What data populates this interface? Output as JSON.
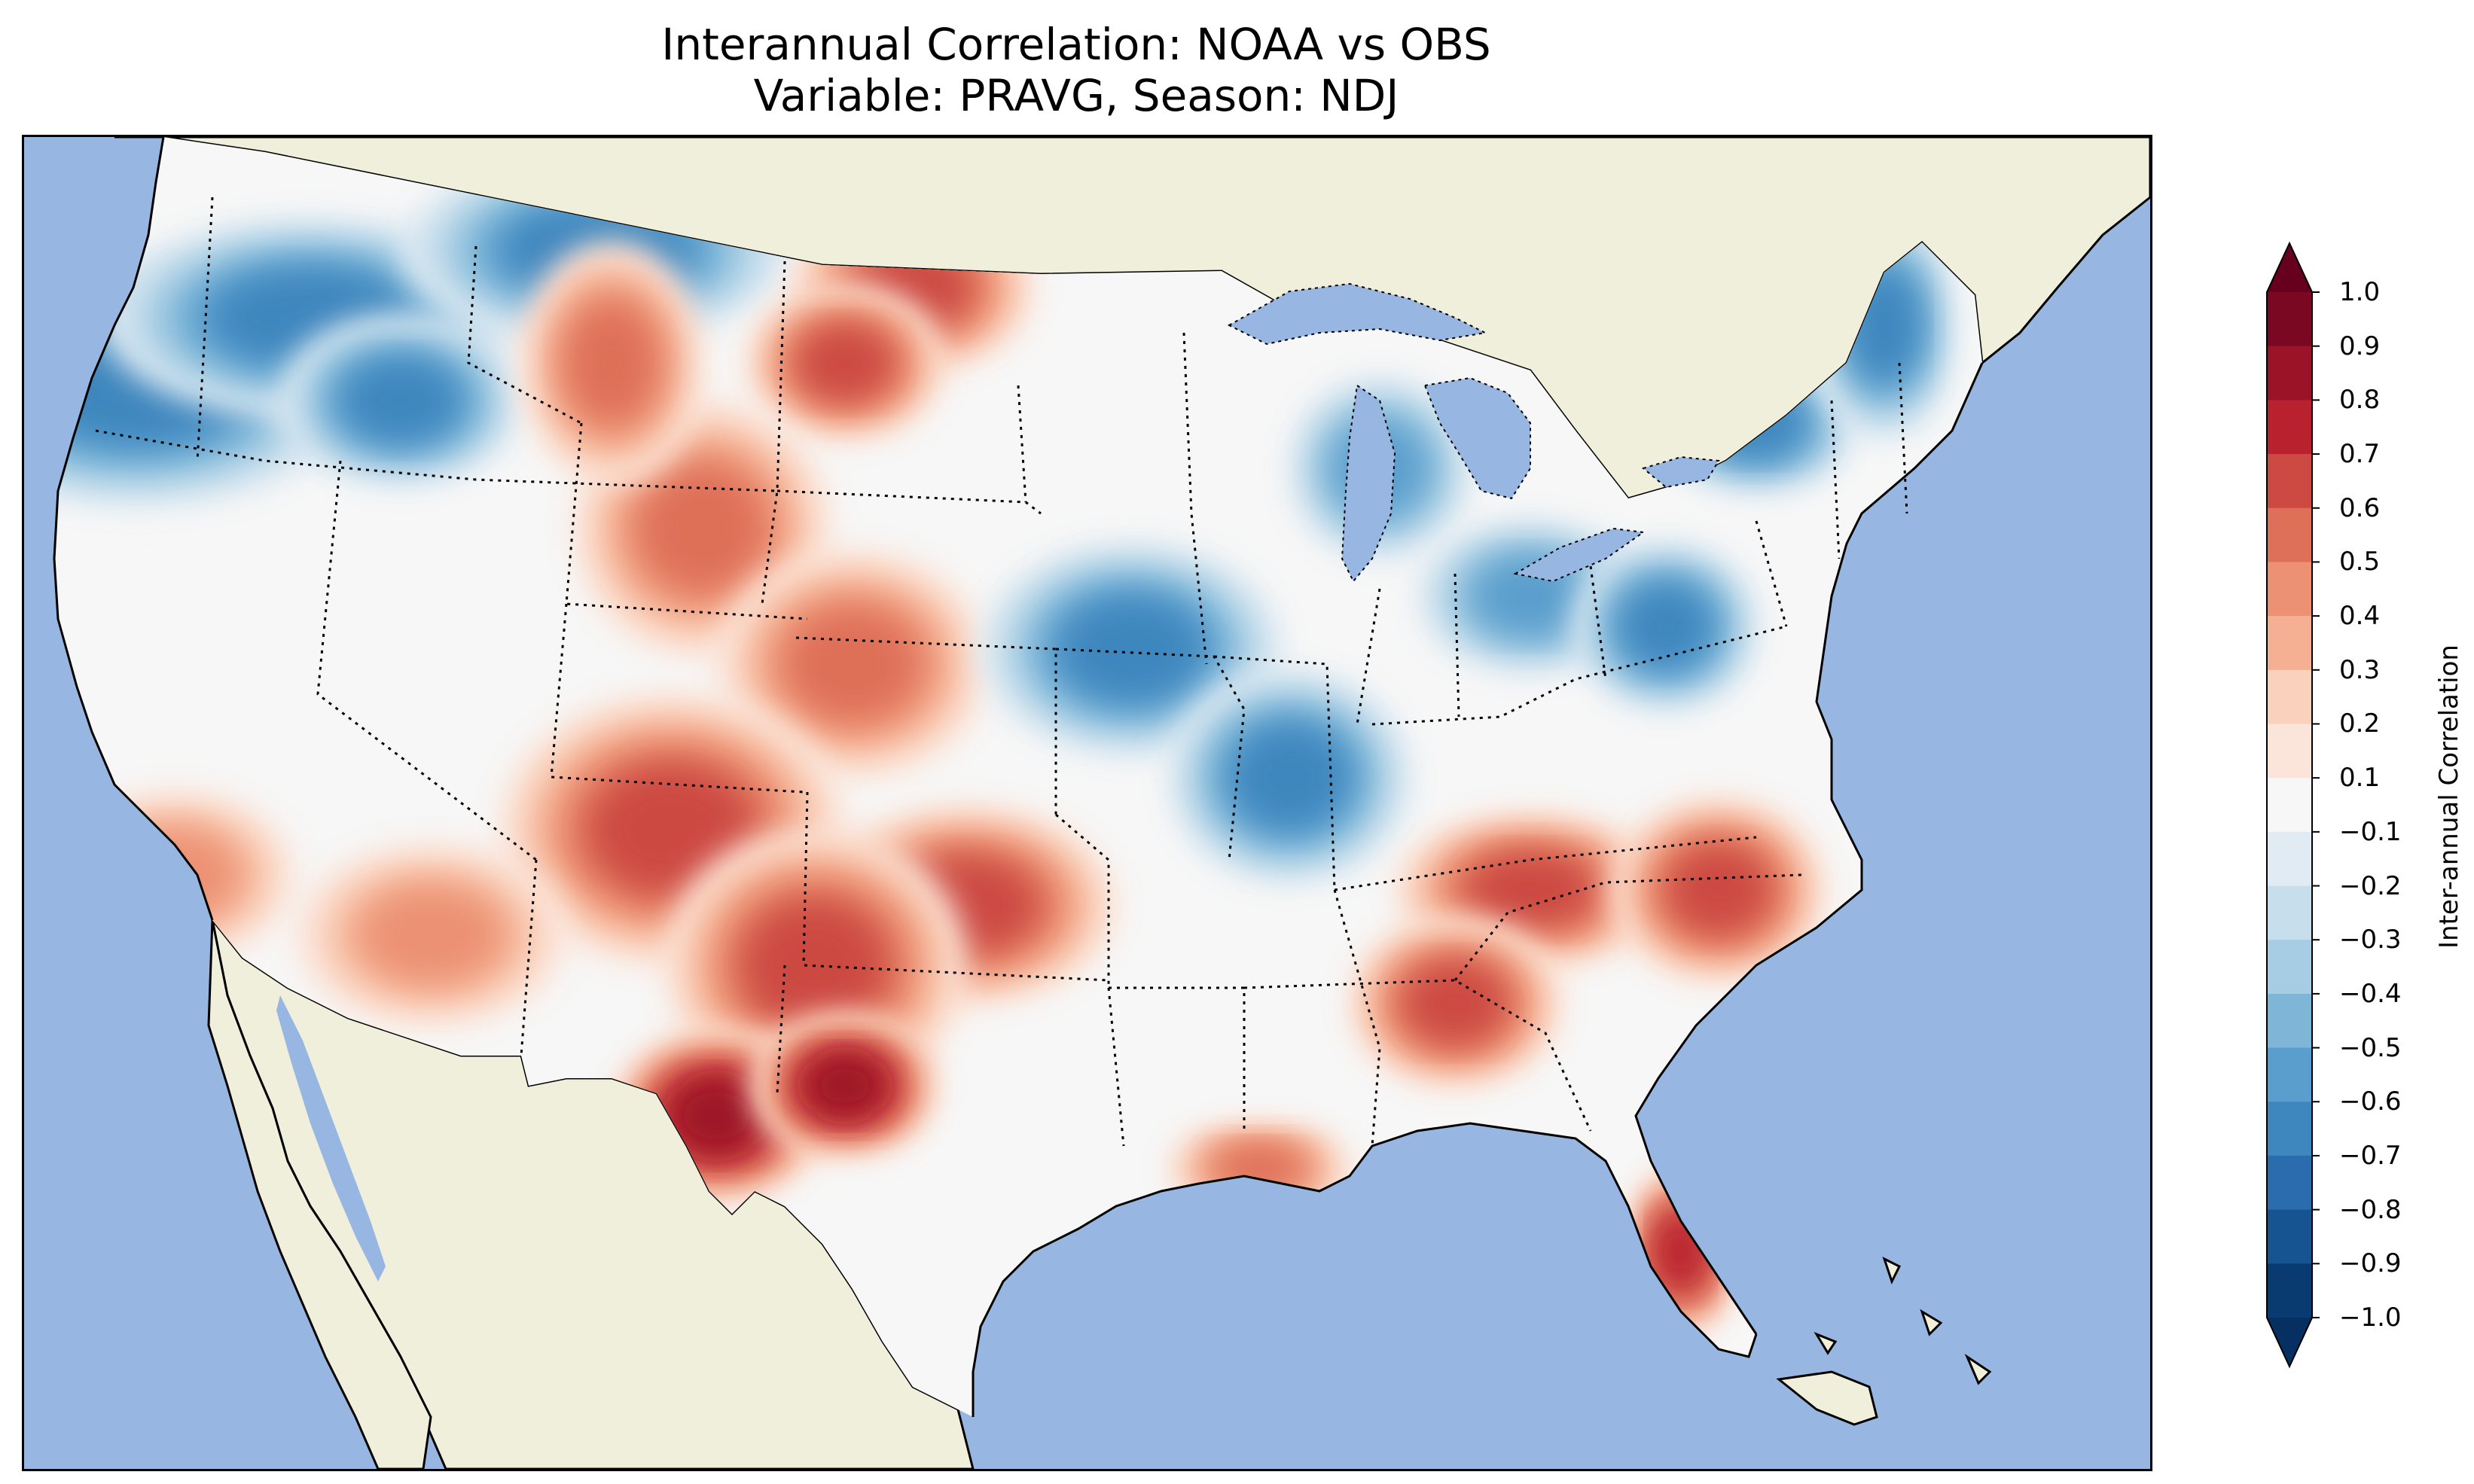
{
  "title": {
    "line1": "Interannual Correlation: NOAA vs OBS",
    "line2": "Variable: PRAVG, Season: NDJ"
  },
  "colors": {
    "ocean": "#97b6e1",
    "land": "#efefdb",
    "border": "#000000"
  },
  "colorbar": {
    "label": "Inter-annual Correlation",
    "levels": [
      "1.0",
      "0.9",
      "0.8",
      "0.7",
      "0.6",
      "0.5",
      "0.4",
      "0.3",
      "0.2",
      "0.1",
      "−0.1",
      "−0.2",
      "−0.3",
      "−0.4",
      "−0.5",
      "−0.6",
      "−0.7",
      "−0.8",
      "−0.9",
      "−1.0"
    ],
    "band_colors": [
      "#7a0822",
      "#9b1327",
      "#b9212f",
      "#cc4a42",
      "#de6f58",
      "#ec9173",
      "#f5b093",
      "#fad1bc",
      "#fbe5da",
      "#f7f7f7",
      "#e0ebf3",
      "#c7deec",
      "#a6cde4",
      "#7fb6d8",
      "#5a9ecd",
      "#3e86be",
      "#2a6cae",
      "#165391",
      "#093b70"
    ],
    "extend_max_color": "#67001f",
    "extend_min_color": "#053061"
  },
  "map_data": {
    "field": "Inter-annual Correlation",
    "regions": [
      {
        "name": "northwest-idaho-montana",
        "sign": "negative",
        "peak": -0.6
      },
      {
        "name": "dakotas",
        "sign": "positive",
        "peak": 0.6
      },
      {
        "name": "colorado-wyoming",
        "sign": "positive",
        "peak": 0.5
      },
      {
        "name": "new-mexico-west-texas",
        "sign": "positive",
        "peak": 0.6
      },
      {
        "name": "southwest-texas",
        "sign": "positive",
        "peak": 0.8
      },
      {
        "name": "iowa-missouri-illinois",
        "sign": "negative",
        "peak": -0.6
      },
      {
        "name": "great-lakes-michigan",
        "sign": "negative",
        "peak": -0.5
      },
      {
        "name": "northeast-new-england",
        "sign": "negative",
        "peak": -0.6
      },
      {
        "name": "pennsylvania",
        "sign": "negative",
        "peak": -0.6
      },
      {
        "name": "southeast-georgia-carolinas",
        "sign": "positive",
        "peak": 0.6
      },
      {
        "name": "florida",
        "sign": "positive",
        "peak": 0.7
      },
      {
        "name": "louisiana-coast",
        "sign": "positive",
        "peak": 0.5
      },
      {
        "name": "california-nevada-arizona",
        "sign": "positive",
        "peak": 0.4
      }
    ]
  }
}
